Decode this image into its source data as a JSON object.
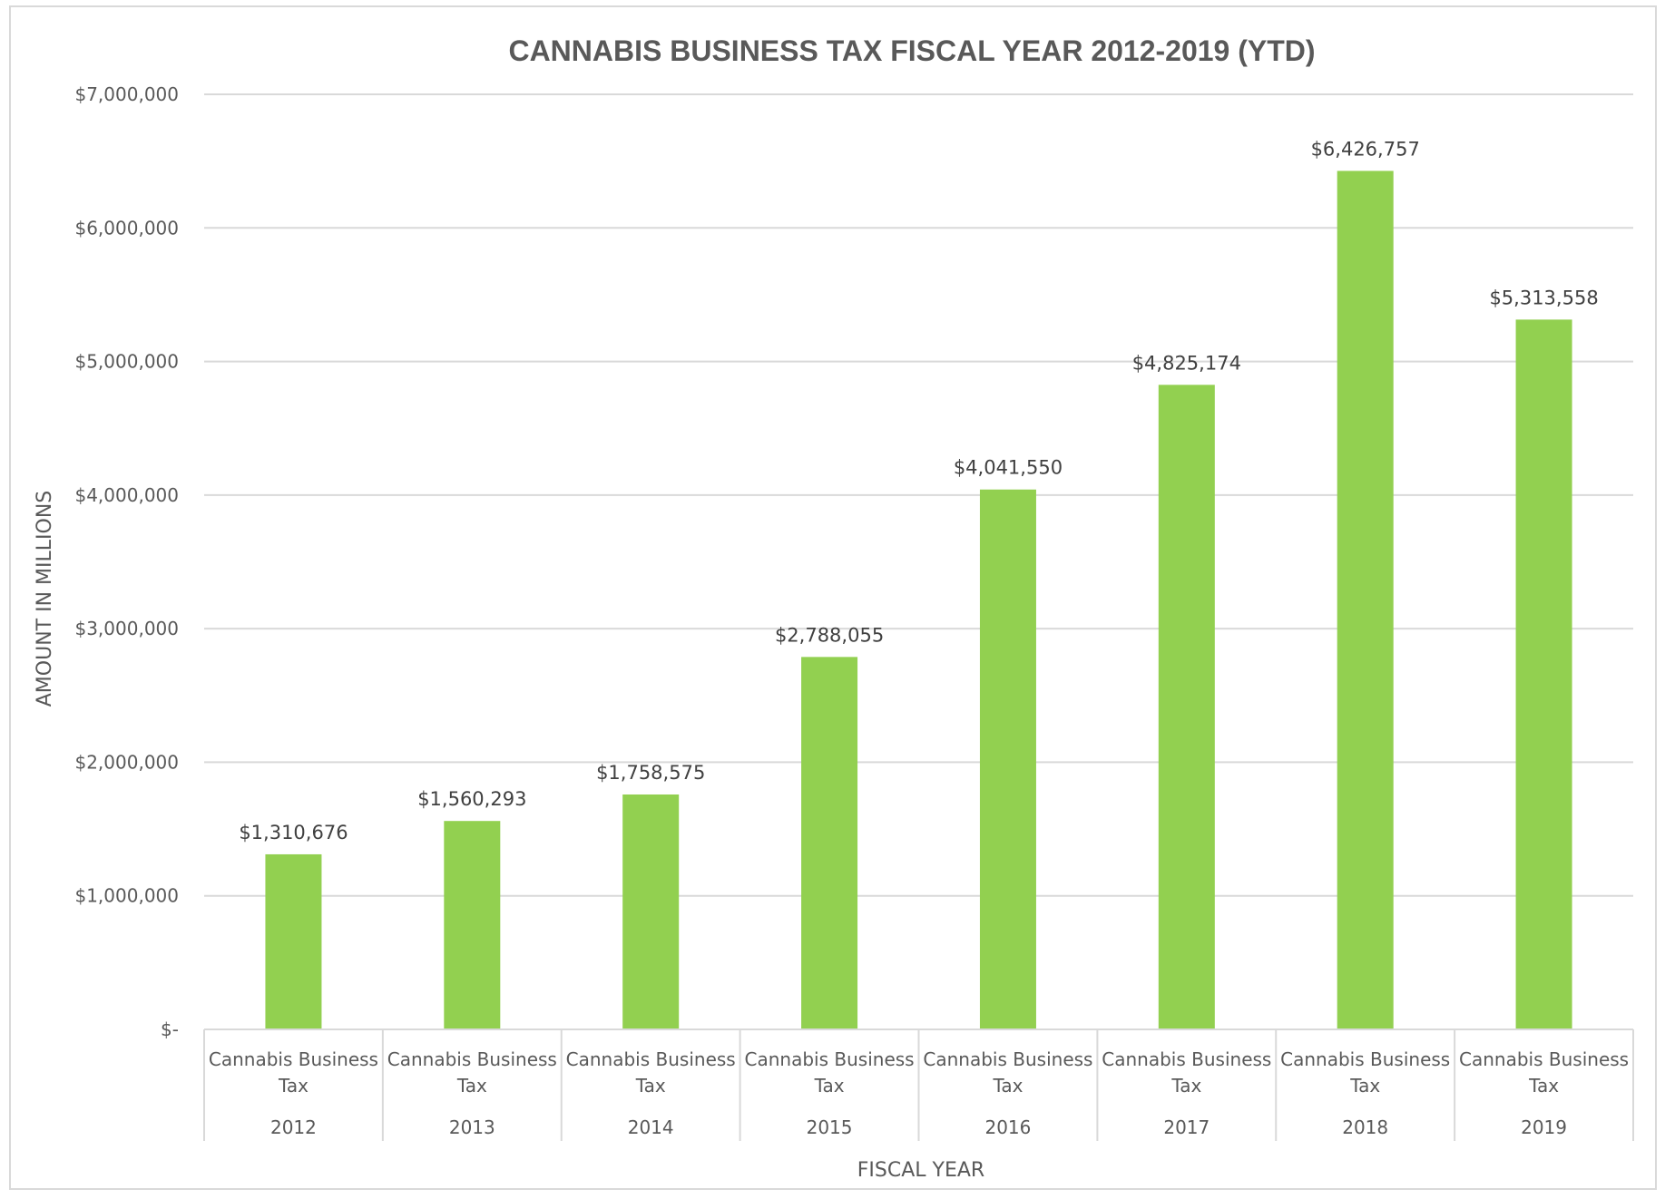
{
  "chart_data": {
    "type": "bar",
    "title": "CANNABIS BUSINESS TAX FISCAL YEAR 2012-2019 (YTD)",
    "xlabel": "FISCAL YEAR",
    "ylabel": "AMOUNT IN MILLIONS",
    "category_label_lines": [
      "Cannabis Business",
      "Tax"
    ],
    "categories": [
      "2012",
      "2013",
      "2014",
      "2015",
      "2016",
      "2017",
      "2018",
      "2019"
    ],
    "values": [
      1310676,
      1560293,
      1758575,
      2788055,
      4041550,
      4825174,
      6426757,
      5313558
    ],
    "data_labels": [
      "$1,310,676",
      "$1,560,293",
      "$1,758,575",
      "$2,788,055",
      "$4,041,550",
      "$4,825,174",
      "$6,426,757",
      "$5,313,558"
    ],
    "ylim": [
      0,
      7000000
    ],
    "yticks": [
      0,
      1000000,
      2000000,
      3000000,
      4000000,
      5000000,
      6000000,
      7000000
    ],
    "ytick_labels": [
      "$-",
      "$1,000,000",
      "$2,000,000",
      "$3,000,000",
      "$4,000,000",
      "$5,000,000",
      "$6,000,000",
      "$7,000,000"
    ],
    "grid": true,
    "legend": "none",
    "bar_color": "#92d050",
    "grid_color": "#d9d9d9",
    "text_color": "#595959"
  }
}
